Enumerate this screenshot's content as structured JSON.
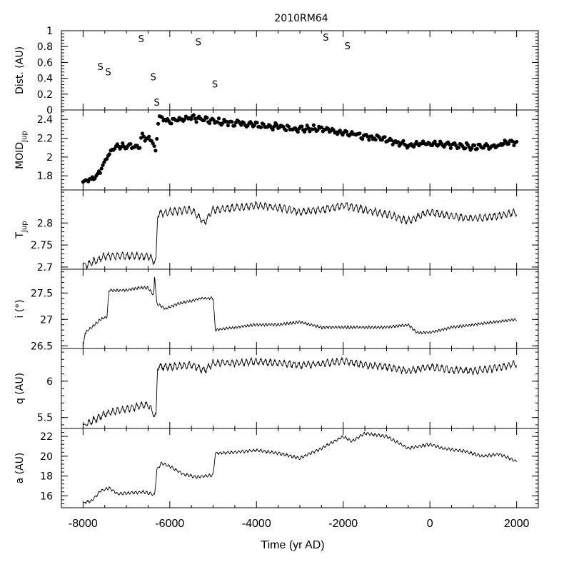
{
  "chart_data": {
    "title": "2010RM64",
    "xlabel": "Time (yr AD)",
    "xlim": [
      -8500,
      2500
    ],
    "xticks": [
      "-8000",
      "-6000",
      "-4000",
      "-2000",
      "0",
      "2000"
    ],
    "panels": [
      {
        "id": "dist",
        "type": "scatter",
        "ylabel": "Dist. (AU)",
        "ylim": [
          0,
          1
        ],
        "yticks": [
          "0",
          "0.2",
          "0.4",
          "0.6",
          "0.8",
          "1"
        ],
        "marker_text": "S",
        "points": [
          {
            "x": -7600,
            "y": 0.55
          },
          {
            "x": -7420,
            "y": 0.48
          },
          {
            "x": -6660,
            "y": 0.9
          },
          {
            "x": -6380,
            "y": 0.42
          },
          {
            "x": -6300,
            "y": 0.1
          },
          {
            "x": -5340,
            "y": 0.86
          },
          {
            "x": -4960,
            "y": 0.33
          },
          {
            "x": -2400,
            "y": 0.92
          },
          {
            "x": -1900,
            "y": 0.81
          }
        ]
      },
      {
        "id": "moid",
        "type": "scatter",
        "ylabel_main": "MOID",
        "ylabel_sub": "Jup",
        "ylim": [
          1.65,
          2.5
        ],
        "yticks": [
          "1.8",
          "2",
          "2.2",
          "2.4"
        ],
        "anchors": [
          [
            -8000,
            1.73
          ],
          [
            -7700,
            1.78
          ],
          [
            -7500,
            1.95
          ],
          [
            -7300,
            2.1
          ],
          [
            -7000,
            2.12
          ],
          [
            -6700,
            2.1
          ],
          [
            -6650,
            2.22
          ],
          [
            -6400,
            2.18
          ],
          [
            -6330,
            2.05
          ],
          [
            -6250,
            2.44
          ],
          [
            -6000,
            2.38
          ],
          [
            -5500,
            2.42
          ],
          [
            -5000,
            2.38
          ],
          [
            -4500,
            2.36
          ],
          [
            -4000,
            2.34
          ],
          [
            -3500,
            2.32
          ],
          [
            -3000,
            2.3
          ],
          [
            -2500,
            2.3
          ],
          [
            -2000,
            2.26
          ],
          [
            -1500,
            2.22
          ],
          [
            -1000,
            2.18
          ],
          [
            -500,
            2.12
          ],
          [
            0,
            2.15
          ],
          [
            500,
            2.13
          ],
          [
            1000,
            2.1
          ],
          [
            1500,
            2.12
          ],
          [
            2000,
            2.16
          ]
        ],
        "osc_amp": 0.02,
        "count": 330
      },
      {
        "id": "tjup",
        "type": "line",
        "ylabel_main": "T",
        "ylabel_sub": "Jup",
        "ylim": [
          2.695,
          2.875
        ],
        "yticks": [
          "2.7",
          "2.75",
          "2.8"
        ],
        "anchors": [
          [
            -8000,
            2.71
          ],
          [
            -7900,
            2.705
          ],
          [
            -7700,
            2.715
          ],
          [
            -7500,
            2.725
          ],
          [
            -7000,
            2.725
          ],
          [
            -6500,
            2.725
          ],
          [
            -6320,
            2.71
          ],
          [
            -6280,
            2.82
          ],
          [
            -6000,
            2.825
          ],
          [
            -5500,
            2.83
          ],
          [
            -5200,
            2.8
          ],
          [
            -5000,
            2.83
          ],
          [
            -4500,
            2.835
          ],
          [
            -4000,
            2.84
          ],
          [
            -3500,
            2.835
          ],
          [
            -3000,
            2.825
          ],
          [
            -2500,
            2.83
          ],
          [
            -2000,
            2.84
          ],
          [
            -1500,
            2.83
          ],
          [
            -1000,
            2.82
          ],
          [
            -500,
            2.805
          ],
          [
            0,
            2.825
          ],
          [
            500,
            2.815
          ],
          [
            1000,
            2.81
          ],
          [
            1500,
            2.815
          ],
          [
            2000,
            2.825
          ]
        ],
        "osc_amp": 0.007,
        "osc_period": 110
      },
      {
        "id": "incl",
        "type": "line",
        "ylabel": "i (°)",
        "ylim": [
          26.45,
          27.95
        ],
        "yticks": [
          "26.5",
          "27",
          "27.5"
        ],
        "anchors": [
          [
            -8000,
            26.5
          ],
          [
            -7950,
            26.75
          ],
          [
            -7800,
            26.85
          ],
          [
            -7600,
            27.0
          ],
          [
            -7450,
            27.05
          ],
          [
            -7400,
            27.55
          ],
          [
            -7000,
            27.55
          ],
          [
            -6700,
            27.6
          ],
          [
            -6500,
            27.6
          ],
          [
            -6370,
            27.45
          ],
          [
            -6350,
            27.85
          ],
          [
            -6300,
            27.3
          ],
          [
            -6100,
            27.2
          ],
          [
            -5800,
            27.3
          ],
          [
            -5500,
            27.35
          ],
          [
            -5300,
            27.4
          ],
          [
            -5000,
            27.4
          ],
          [
            -4950,
            26.8
          ],
          [
            -4500,
            26.85
          ],
          [
            -4000,
            26.9
          ],
          [
            -3500,
            26.9
          ],
          [
            -3000,
            26.95
          ],
          [
            -2500,
            26.85
          ],
          [
            -2000,
            26.85
          ],
          [
            -1500,
            26.85
          ],
          [
            -1000,
            26.85
          ],
          [
            -500,
            26.9
          ],
          [
            -300,
            26.75
          ],
          [
            0,
            26.75
          ],
          [
            500,
            26.85
          ],
          [
            1000,
            26.9
          ],
          [
            1500,
            26.95
          ],
          [
            2000,
            27.0
          ]
        ],
        "osc_amp": 0.02,
        "osc_period": 70
      },
      {
        "id": "q",
        "type": "line",
        "ylabel": "q (AU)",
        "ylim": [
          5.35,
          6.45
        ],
        "yticks": [
          "5.5",
          "6"
        ],
        "anchors": [
          [
            -8000,
            5.4
          ],
          [
            -7800,
            5.45
          ],
          [
            -7500,
            5.55
          ],
          [
            -7000,
            5.62
          ],
          [
            -6500,
            5.68
          ],
          [
            -6320,
            5.5
          ],
          [
            -6280,
            6.2
          ],
          [
            -6000,
            6.2
          ],
          [
            -5500,
            6.22
          ],
          [
            -5200,
            6.15
          ],
          [
            -5000,
            6.25
          ],
          [
            -4500,
            6.25
          ],
          [
            -4000,
            6.27
          ],
          [
            -3500,
            6.25
          ],
          [
            -3000,
            6.22
          ],
          [
            -2500,
            6.24
          ],
          [
            -2000,
            6.28
          ],
          [
            -1500,
            6.22
          ],
          [
            -1000,
            6.2
          ],
          [
            -500,
            6.14
          ],
          [
            0,
            6.2
          ],
          [
            500,
            6.16
          ],
          [
            1000,
            6.14
          ],
          [
            1500,
            6.18
          ],
          [
            2000,
            6.24
          ]
        ],
        "osc_amp": 0.04,
        "osc_period": 110
      },
      {
        "id": "a",
        "type": "line",
        "ylabel": "a (AU)",
        "ylim": [
          14.8,
          22.8
        ],
        "yticks": [
          "16",
          "18",
          "20",
          "22"
        ],
        "anchors": [
          [
            -8000,
            15.3
          ],
          [
            -7800,
            15.5
          ],
          [
            -7600,
            16.5
          ],
          [
            -7400,
            16.8
          ],
          [
            -7200,
            16.2
          ],
          [
            -6900,
            16.3
          ],
          [
            -6600,
            16.4
          ],
          [
            -6350,
            16.1
          ],
          [
            -6300,
            18.6
          ],
          [
            -6200,
            19.3
          ],
          [
            -6000,
            19
          ],
          [
            -5700,
            18.2
          ],
          [
            -5400,
            17.9
          ],
          [
            -5000,
            18.1
          ],
          [
            -4950,
            20.3
          ],
          [
            -4500,
            20.4
          ],
          [
            -4000,
            20.6
          ],
          [
            -3500,
            20.3
          ],
          [
            -3000,
            19.8
          ],
          [
            -2500,
            20.8
          ],
          [
            -2000,
            22
          ],
          [
            -1800,
            21.5
          ],
          [
            -1500,
            22.3
          ],
          [
            -1000,
            22
          ],
          [
            -500,
            20.8
          ],
          [
            0,
            21.2
          ],
          [
            300,
            20.8
          ],
          [
            800,
            20.5
          ],
          [
            1200,
            20.0
          ],
          [
            1600,
            20.2
          ],
          [
            2000,
            19.5
          ]
        ],
        "osc_amp": 0.12,
        "osc_period": 85
      }
    ]
  }
}
